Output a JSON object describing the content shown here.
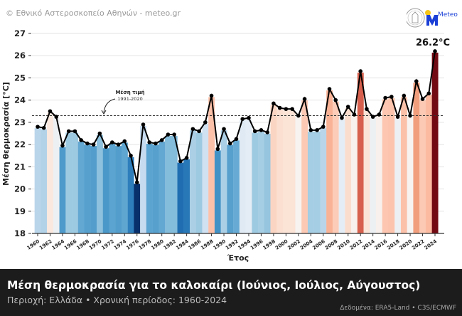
{
  "header": {
    "copyright": "© Εθνικό Αστεροσκοπείο Αθηνών - meteo.gr",
    "logo_text": "Meteo",
    "logo_tagline": "Όλα για τον καιρό"
  },
  "footer": {
    "title": "Μέση θερμοκρασία για το καλοκαίρι (Ιούνιος, Ιούλιος, Αύγουστος)",
    "subtitle": "Περιοχή: Ελλάδα • Χρονική περίοδος: 1960-2024",
    "source": "Δεδομένα: ERA5-Land • C3S/ECMWF"
  },
  "chart_data": {
    "type": "bar",
    "xlabel": "Έτος",
    "ylabel": "Μέση θερμοκρασία [°C]",
    "ylim": [
      18,
      27
    ],
    "yticks": [
      "18",
      "19",
      "20",
      "21",
      "22",
      "23",
      "24",
      "25",
      "26",
      "27"
    ],
    "grid": true,
    "x": [
      1960,
      1961,
      1962,
      1963,
      1964,
      1965,
      1966,
      1967,
      1968,
      1969,
      1970,
      1971,
      1972,
      1973,
      1974,
      1975,
      1976,
      1977,
      1978,
      1979,
      1980,
      1981,
      1982,
      1983,
      1984,
      1985,
      1986,
      1987,
      1988,
      1989,
      1990,
      1991,
      1992,
      1993,
      1994,
      1995,
      1996,
      1997,
      1998,
      1999,
      2000,
      2001,
      2002,
      2003,
      2004,
      2005,
      2006,
      2007,
      2008,
      2009,
      2010,
      2011,
      2012,
      2013,
      2014,
      2015,
      2016,
      2017,
      2018,
      2019,
      2020,
      2021,
      2022,
      2023,
      2024
    ],
    "values": [
      22.8,
      22.75,
      23.5,
      23.25,
      21.95,
      22.6,
      22.6,
      22.2,
      22.05,
      22.0,
      22.5,
      21.9,
      22.1,
      22.0,
      22.15,
      21.5,
      20.3,
      22.9,
      22.1,
      22.05,
      22.2,
      22.45,
      22.45,
      21.25,
      21.4,
      22.7,
      22.6,
      23.0,
      24.2,
      21.8,
      22.7,
      22.05,
      22.25,
      23.15,
      23.2,
      22.6,
      22.65,
      22.55,
      23.85,
      23.65,
      23.6,
      23.6,
      23.3,
      24.05,
      22.65,
      22.65,
      22.8,
      24.5,
      24.0,
      23.2,
      23.7,
      23.35,
      25.3,
      23.6,
      23.25,
      23.35,
      24.1,
      24.15,
      23.25,
      24.2,
      23.3,
      24.85,
      24.05,
      24.3,
      26.2
    ],
    "reference": {
      "value": 23.3,
      "label": "Μέση τιμή",
      "period": "1991-2020"
    },
    "annotation": "26.2°C",
    "colors": {
      "cold": "#08306b",
      "neutral": "#f7f7f7",
      "warm": "#67000d",
      "line": "#000000"
    }
  }
}
